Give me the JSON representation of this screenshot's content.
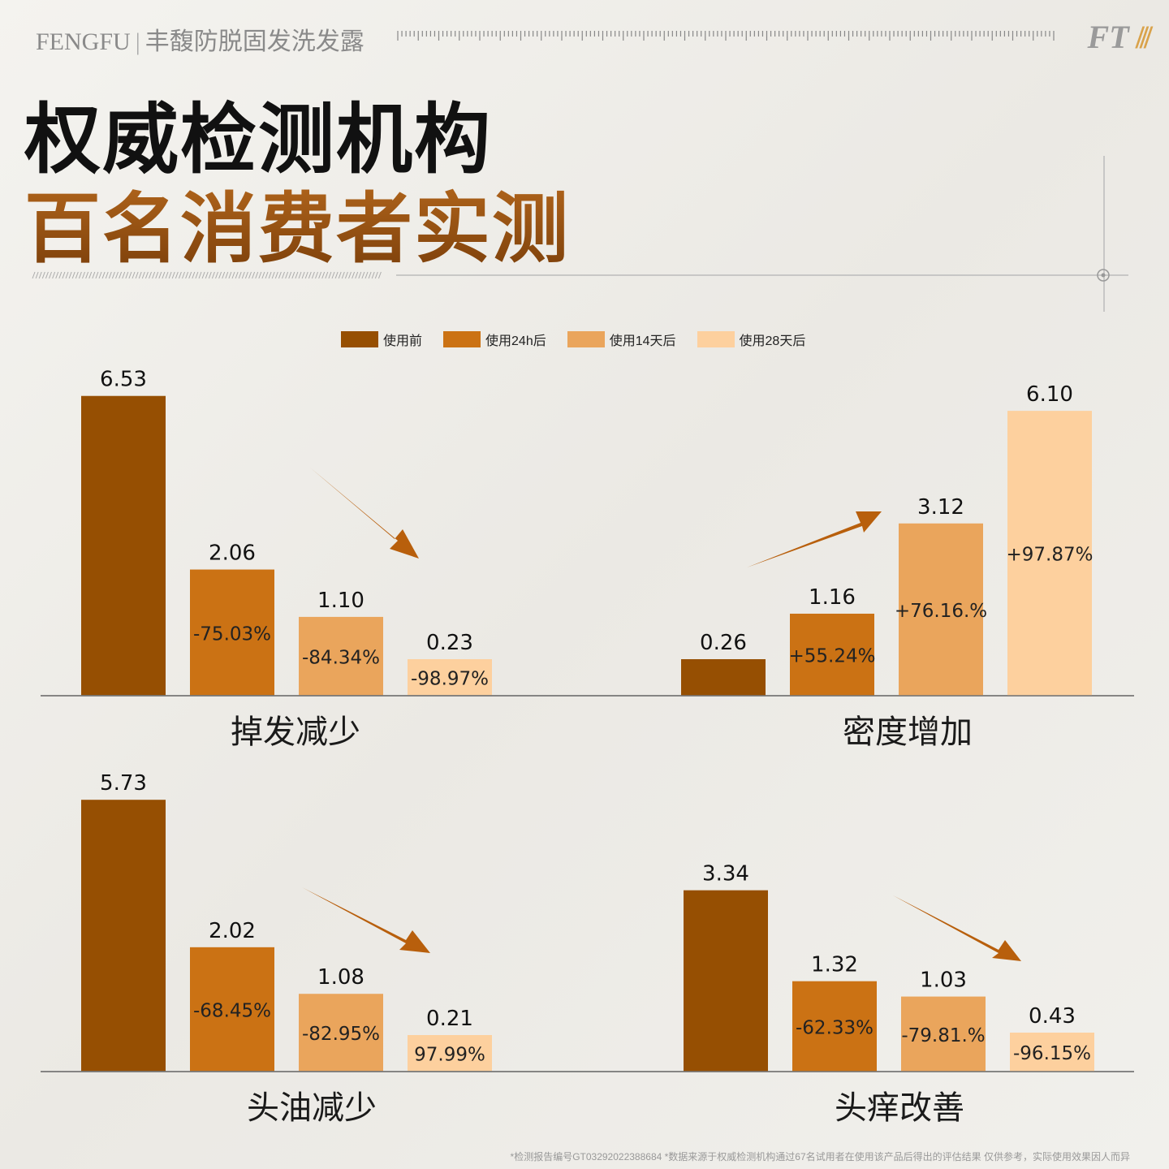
{
  "header": {
    "brand": "FENGFU",
    "separator": "|",
    "product": "丰馥防脱固发洗发露",
    "logo_text": "FT",
    "logo_mark": "///"
  },
  "title": {
    "line1": "权威检测机构",
    "line2": "百名消费者实测"
  },
  "colors": {
    "before": "#964f02",
    "h24": "#cb7214",
    "d14": "#eaa55c",
    "d28": "#fdd09e",
    "arrow": "#b85f0c",
    "title_accent": "#8a4a10"
  },
  "chart_data": {
    "type": "bar",
    "legend": [
      "使用前",
      "使用24h后",
      "使用14天后",
      "使用28天后"
    ],
    "legend_position": "top-center",
    "panels": [
      {
        "label": "掉发减少",
        "values": [
          6.53,
          2.06,
          1.1,
          0.23
        ],
        "value_labels": [
          "6.53",
          "2.06",
          "1.10",
          "0.23"
        ],
        "changes": [
          "",
          "-75.03%",
          "-84.34%",
          "-98.97%"
        ],
        "trend": "down"
      },
      {
        "label": "密度增加",
        "values": [
          0.26,
          1.16,
          3.12,
          6.1
        ],
        "value_labels": [
          "0.26",
          "1.16",
          "3.12",
          "6.10"
        ],
        "changes": [
          "",
          "+55.24%",
          "+76.16.%",
          "+97.87%"
        ],
        "trend": "up"
      },
      {
        "label": "头油减少",
        "values": [
          5.73,
          2.02,
          1.08,
          0.21
        ],
        "value_labels": [
          "5.73",
          "2.02",
          "1.08",
          "0.21"
        ],
        "changes": [
          "",
          "-68.45%",
          "-82.95%",
          "97.99%"
        ],
        "trend": "down"
      },
      {
        "label": "头痒改善",
        "values": [
          3.34,
          1.32,
          1.03,
          0.43
        ],
        "value_labels": [
          "3.34",
          "1.32",
          "1.03",
          "0.43"
        ],
        "changes": [
          "",
          "-62.33%",
          "-79.81.%",
          "-96.15%"
        ],
        "trend": "down"
      }
    ]
  },
  "footnote": "*检测报告编号GT03292022388684  *数据来源于权威检测机构通过67名试用者在使用该产品后得出的评估结果 仅供参考，实际使用效果因人而异"
}
